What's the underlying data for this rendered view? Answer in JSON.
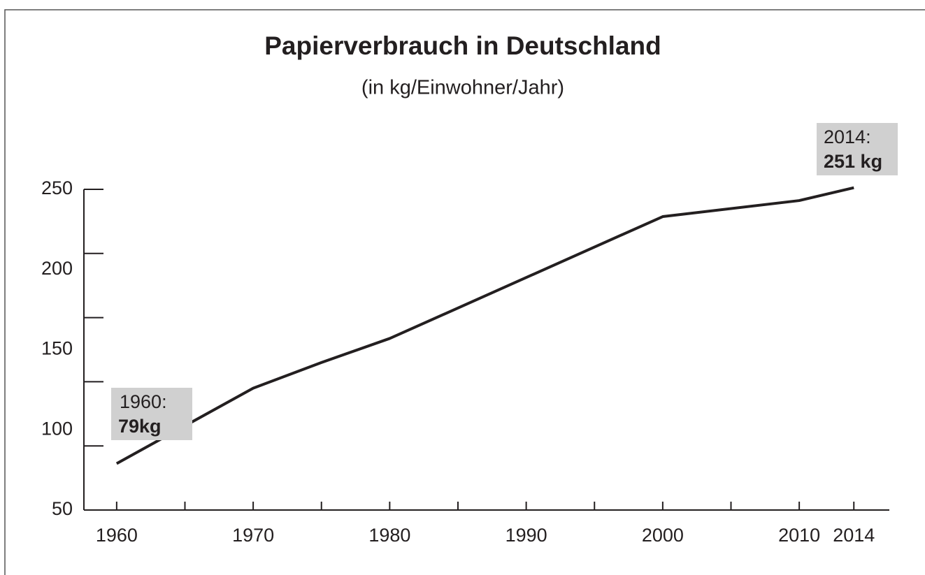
{
  "chart_data": {
    "type": "line",
    "title": "Papierverbrauch in Deutschland",
    "subtitle": "(in kg/Einwohner/Jahr)",
    "x": [
      1960,
      1970,
      1975,
      1980,
      1990,
      2000,
      2010,
      2014
    ],
    "series": [
      {
        "color": "#231f20",
        "values": [
          79,
          126,
          142,
          157,
          195,
          233,
          243,
          251
        ]
      }
    ],
    "xlim": [
      1957.6,
      2016.6
    ],
    "xticks": [
      1960,
      1970,
      1980,
      1990,
      2000,
      2010,
      2014
    ],
    "xtick_marks": [
      1960,
      1965,
      1970,
      1975,
      1980,
      1985,
      1990,
      1995,
      2000,
      2005,
      2010,
      2014
    ],
    "ylim": [
      50,
      250
    ],
    "yticks": [
      50,
      100,
      150,
      200,
      250
    ],
    "ytick_marks": [
      50,
      90,
      130,
      170,
      210,
      250
    ],
    "annotations": [
      {
        "x": 1960,
        "head": "1960:",
        "label": "79kg"
      },
      {
        "x": 2014,
        "head": "2014:",
        "label": "251 kg"
      }
    ]
  }
}
